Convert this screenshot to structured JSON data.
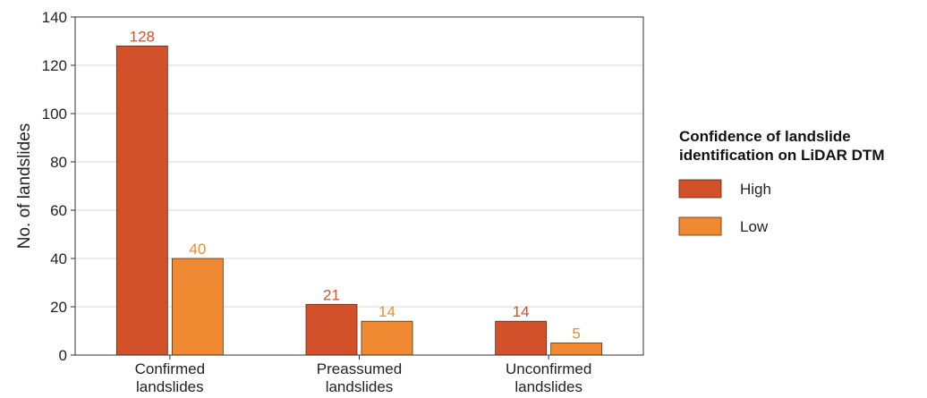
{
  "chart_data": {
    "type": "bar",
    "categories": [
      [
        "Confirmed",
        "landslides"
      ],
      [
        "Preassumed",
        "landslides"
      ],
      [
        "Unconfirmed",
        "landslides"
      ]
    ],
    "series": [
      {
        "name": "High",
        "values": [
          128,
          21,
          14
        ],
        "color": "#d2502a",
        "label_color": "#d2502a"
      },
      {
        "name": "Low",
        "values": [
          40,
          14,
          5
        ],
        "color": "#f08a32",
        "label_color": "#f08a32"
      }
    ],
    "ylabel": "No. of landslides",
    "xlabel": "",
    "ylim": [
      0,
      140
    ],
    "yticks": [
      0,
      20,
      40,
      60,
      80,
      100,
      120,
      140
    ],
    "grid": true,
    "legend": {
      "title": [
        "Confidence of landslide",
        "identification on LiDAR DTM"
      ],
      "placement": "right"
    }
  }
}
